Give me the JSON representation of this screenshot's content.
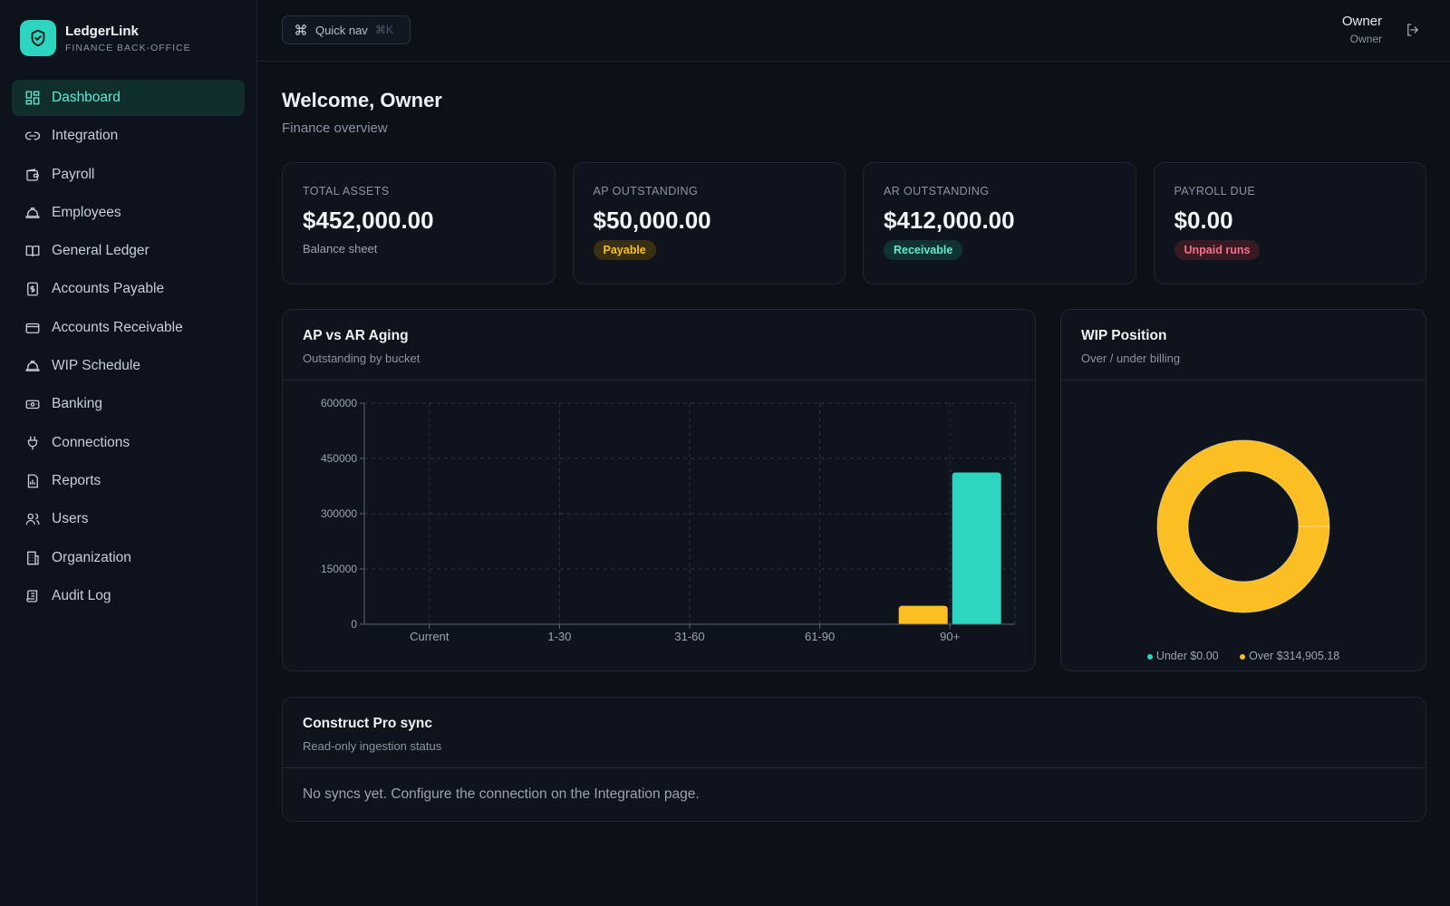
{
  "app": {
    "name": "LedgerLink",
    "subtitle": "FINANCE BACK-OFFICE"
  },
  "sidebar": {
    "items": [
      {
        "label": "Dashboard",
        "icon": "dashboard-icon",
        "active": true
      },
      {
        "label": "Integration",
        "icon": "link-icon"
      },
      {
        "label": "Payroll",
        "icon": "wallet-icon"
      },
      {
        "label": "Employees",
        "icon": "hard-hat-icon"
      },
      {
        "label": "General Ledger",
        "icon": "book-icon"
      },
      {
        "label": "Accounts Payable",
        "icon": "receipt-dollar-icon"
      },
      {
        "label": "Accounts Receivable",
        "icon": "credit-card-icon"
      },
      {
        "label": "WIP Schedule",
        "icon": "hard-hat-icon"
      },
      {
        "label": "Banking",
        "icon": "banknote-icon"
      },
      {
        "label": "Connections",
        "icon": "plug-icon"
      },
      {
        "label": "Reports",
        "icon": "file-chart-icon"
      },
      {
        "label": "Users",
        "icon": "users-icon"
      },
      {
        "label": "Organization",
        "icon": "building-icon"
      },
      {
        "label": "Audit Log",
        "icon": "scroll-icon"
      }
    ]
  },
  "topbar": {
    "quicknav_label": "Quick nav",
    "quicknav_shortcut": "⌘K",
    "user_name": "Owner",
    "user_role": "Owner"
  },
  "page": {
    "welcome": "Welcome, Owner",
    "subtitle": "Finance overview"
  },
  "stats": [
    {
      "label": "TOTAL ASSETS",
      "value": "$452,000.00",
      "note": "Balance sheet"
    },
    {
      "label": "AP OUTSTANDING",
      "value": "$50,000.00",
      "badge": "Payable",
      "badge_color": "#fbbf24"
    },
    {
      "label": "AR OUTSTANDING",
      "value": "$412,000.00",
      "badge": "Receivable",
      "badge_color": "#5eead4"
    },
    {
      "label": "PAYROLL DUE",
      "value": "$0.00",
      "badge": "Unpaid runs",
      "badge_color": "#f4708a"
    }
  ],
  "aging_card": {
    "title": "AP vs AR Aging",
    "subtitle": "Outstanding by bucket"
  },
  "wip_card": {
    "title": "WIP Position",
    "subtitle": "Over / under billing",
    "legend_under": "Under $0.00",
    "legend_over": "Over $314,905.18"
  },
  "sync_card": {
    "title": "Construct Pro sync",
    "subtitle": "Read-only ingestion status",
    "message": "No syncs yet. Configure the connection on the Integration page."
  },
  "colors": {
    "accent": "#2dd4bf",
    "ap": "#fbbf24",
    "ar": "#2dd4bf"
  },
  "chart_data": [
    {
      "type": "bar",
      "categories": [
        "Current",
        "1-30",
        "31-60",
        "61-90",
        "90+"
      ],
      "series": [
        {
          "values": [
            0,
            0,
            0,
            0,
            50000
          ],
          "color": "#fbbf24"
        },
        {
          "values": [
            0,
            0,
            0,
            0,
            412000
          ],
          "color": "#2dd4bf"
        }
      ],
      "yticks": [
        "0",
        "150000",
        "300000",
        "450000",
        "600000"
      ],
      "ylim": [
        0,
        600000
      ],
      "grid": true
    },
    {
      "type": "pie",
      "categories": [
        "Under",
        "Over"
      ],
      "values": [
        0,
        314905.18
      ],
      "colors": [
        "#2dd4bf",
        "#fbbf24"
      ]
    }
  ]
}
